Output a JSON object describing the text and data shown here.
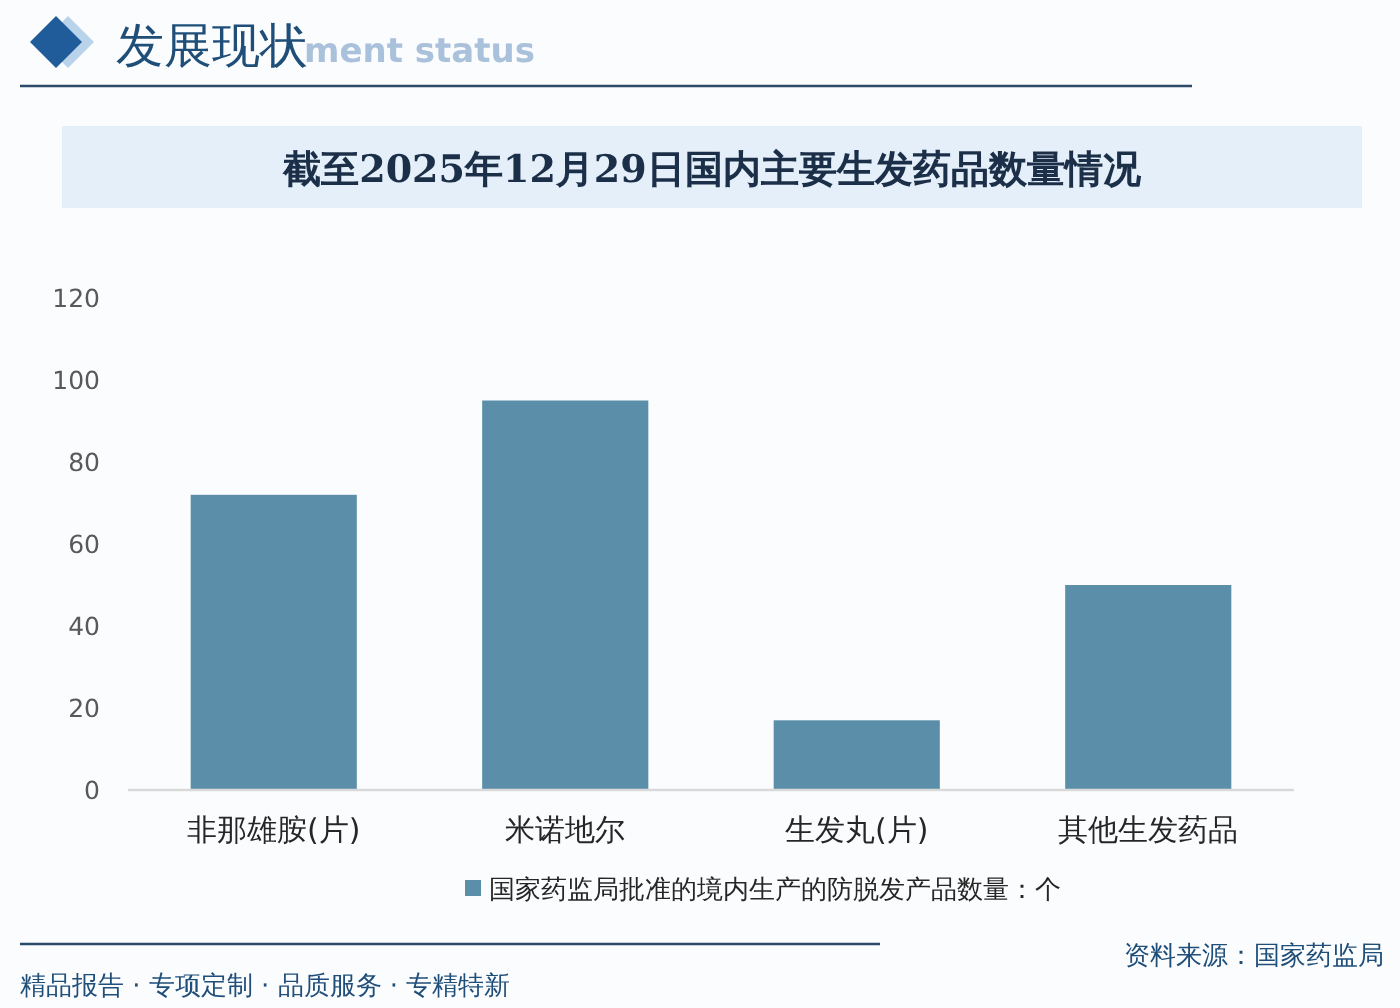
{
  "chart_data": {
    "type": "bar",
    "title": "截至2025年12月29日国内主要生发药品数量情况",
    "categories": [
      "非那雄胺(片)",
      "米诺地尔",
      "生发丸(片)",
      "其他生发药品"
    ],
    "series": [
      {
        "name": "国家药监局批准的境内生产的防脱发产品数量：个",
        "color": "#5b8ea8",
        "values": [
          72,
          95,
          17,
          50
        ]
      }
    ],
    "ylim": [
      0,
      120
    ],
    "yticks": [
      0,
      20,
      40,
      60,
      80,
      100,
      120
    ],
    "grid": false,
    "legend": "bottom",
    "annotations": [
      "发展现状",
      "ment status",
      "资料来源：国家药监局",
      "精品报告 · 专项定制 · 品质服务 · 专精特新"
    ]
  }
}
